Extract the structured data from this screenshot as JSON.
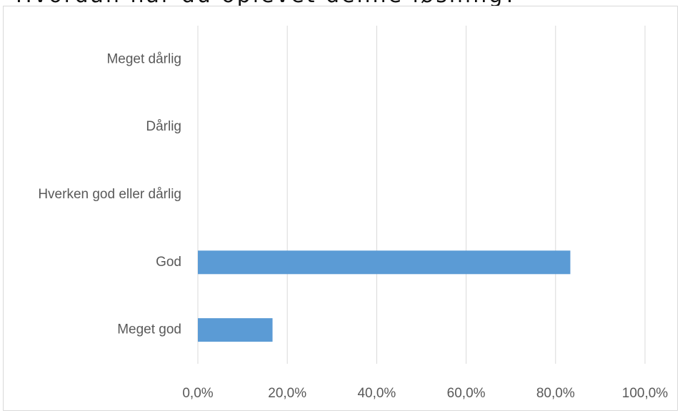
{
  "chart_data": {
    "type": "bar",
    "orientation": "horizontal",
    "title": "Hvordan har du oplevet denne løsning?",
    "categories": [
      "Meget dårlig",
      "Dårlig",
      "Hverken god eller dårlig",
      "God",
      "Meget god"
    ],
    "values": [
      0,
      0,
      0,
      83.3,
      16.7
    ],
    "xlim": [
      0,
      100
    ],
    "ticks": [
      "0,0%",
      "20,0%",
      "40,0%",
      "60,0%",
      "80,0%",
      "100,0%"
    ],
    "tick_values": [
      0,
      20,
      40,
      60,
      80,
      100
    ],
    "grid": true,
    "legend": "none",
    "bar_color": "#5b9bd5",
    "xlabel": "",
    "ylabel": ""
  }
}
